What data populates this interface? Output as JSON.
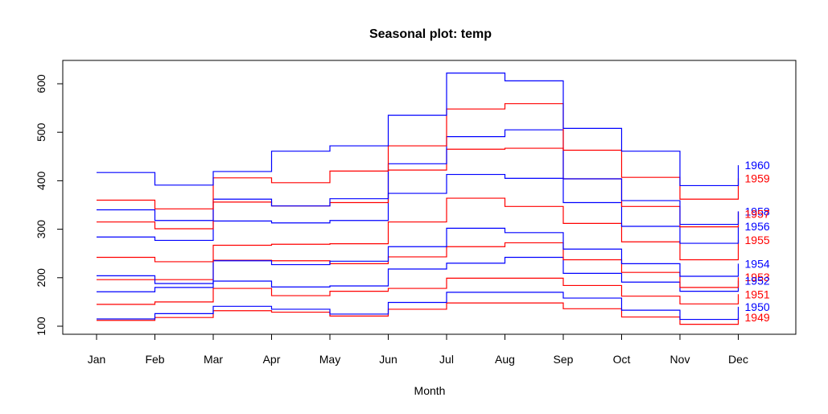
{
  "chart_data": {
    "type": "line",
    "style": "step",
    "title": "Seasonal plot: temp",
    "xlabel": "Month",
    "ylabel": "",
    "categories": [
      "Jan",
      "Feb",
      "Mar",
      "Apr",
      "May",
      "Jun",
      "Jul",
      "Aug",
      "Sep",
      "Oct",
      "Nov",
      "Dec"
    ],
    "ylim": [
      85,
      650
    ],
    "yticks": [
      100,
      200,
      300,
      400,
      500,
      600
    ],
    "grid": false,
    "legend": "inline labels at right end of each series",
    "series": [
      {
        "name": "1949",
        "color": "#ff0000",
        "values": [
          112,
          118,
          132,
          129,
          121,
          135,
          148,
          148,
          136,
          119,
          104,
          118
        ]
      },
      {
        "name": "1950",
        "color": "#0000ff",
        "values": [
          115,
          126,
          141,
          135,
          125,
          149,
          170,
          170,
          158,
          133,
          114,
          140
        ]
      },
      {
        "name": "1951",
        "color": "#ff0000",
        "values": [
          145,
          150,
          178,
          163,
          172,
          178,
          199,
          199,
          184,
          162,
          146,
          166
        ]
      },
      {
        "name": "1952",
        "color": "#0000ff",
        "values": [
          171,
          180,
          193,
          181,
          183,
          218,
          230,
          242,
          209,
          191,
          172,
          194
        ]
      },
      {
        "name": "1953",
        "color": "#ff0000",
        "values": [
          196,
          196,
          236,
          235,
          229,
          243,
          264,
          272,
          237,
          211,
          180,
          201
        ]
      },
      {
        "name": "1954",
        "color": "#0000ff",
        "values": [
          204,
          188,
          235,
          227,
          234,
          264,
          302,
          293,
          259,
          229,
          203,
          229
        ]
      },
      {
        "name": "1955",
        "color": "#ff0000",
        "values": [
          242,
          233,
          267,
          269,
          270,
          315,
          364,
          347,
          312,
          274,
          237,
          278
        ]
      },
      {
        "name": "1956",
        "color": "#0000ff",
        "values": [
          284,
          277,
          317,
          313,
          318,
          374,
          413,
          405,
          355,
          306,
          271,
          306
        ]
      },
      {
        "name": "1957",
        "color": "#ff0000",
        "values": [
          315,
          301,
          356,
          348,
          355,
          422,
          465,
          467,
          404,
          347,
          305,
          336
        ]
      },
      {
        "name": "1958",
        "color": "#0000ff",
        "values": [
          340,
          318,
          362,
          348,
          363,
          435,
          491,
          505,
          404,
          359,
          310,
          337
        ]
      },
      {
        "name": "1959",
        "color": "#ff0000",
        "values": [
          360,
          342,
          406,
          396,
          420,
          472,
          548,
          559,
          463,
          407,
          362,
          405
        ]
      },
      {
        "name": "1960",
        "color": "#0000ff",
        "values": [
          417,
          391,
          419,
          461,
          472,
          535,
          622,
          606,
          508,
          461,
          390,
          432
        ]
      }
    ]
  }
}
